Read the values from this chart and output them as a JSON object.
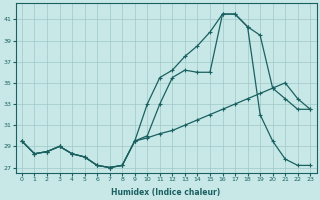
{
  "title": "",
  "xlabel": "Humidex (Indice chaleur)",
  "ylabel": "",
  "background_color": "#c8e8e8",
  "grid_color": "#a0c8c8",
  "line_color": "#1a6060",
  "ylim": [
    26.5,
    42.5
  ],
  "xlim": [
    -0.5,
    23.5
  ],
  "yticks": [
    27,
    29,
    31,
    33,
    35,
    37,
    39,
    41
  ],
  "xticks": [
    0,
    1,
    2,
    3,
    4,
    5,
    6,
    7,
    8,
    9,
    10,
    11,
    12,
    13,
    14,
    15,
    16,
    17,
    18,
    19,
    20,
    21,
    22,
    23
  ],
  "xtick_labels": [
    "0",
    "1",
    "2",
    "3",
    "4",
    "5",
    "6",
    "7",
    "8",
    "9",
    "10",
    "11",
    "12",
    "13",
    "14",
    "15",
    "16",
    "17",
    "18",
    "19",
    "20",
    "21",
    "22",
    "23"
  ],
  "series1_x": [
    0,
    1,
    2,
    3,
    4,
    5,
    6,
    7,
    8,
    9,
    10,
    11,
    12,
    13,
    14,
    15,
    16,
    17,
    18,
    19,
    20,
    21,
    22,
    23
  ],
  "series1_y": [
    29.5,
    28.3,
    28.5,
    29.0,
    28.3,
    28.0,
    27.2,
    27.0,
    27.2,
    29.5,
    33.0,
    35.5,
    36.2,
    37.5,
    38.5,
    39.8,
    41.5,
    41.5,
    40.3,
    39.5,
    34.5,
    33.5,
    32.5,
    32.5
  ],
  "series2_x": [
    0,
    1,
    2,
    3,
    4,
    5,
    6,
    7,
    8,
    9,
    10,
    11,
    12,
    13,
    14,
    15,
    16,
    17,
    18,
    19,
    20,
    21,
    22,
    23
  ],
  "series2_y": [
    29.5,
    28.3,
    28.5,
    29.0,
    28.3,
    28.0,
    27.2,
    27.0,
    27.2,
    29.5,
    30.0,
    33.0,
    35.5,
    36.2,
    36.0,
    36.0,
    41.5,
    41.5,
    40.3,
    32.0,
    29.5,
    27.8,
    27.2,
    27.2
  ],
  "series3_x": [
    0,
    1,
    2,
    3,
    4,
    5,
    6,
    7,
    8,
    9,
    10,
    11,
    12,
    13,
    14,
    15,
    16,
    17,
    18,
    19,
    20,
    21,
    22,
    23
  ],
  "series3_y": [
    29.5,
    28.3,
    28.5,
    29.0,
    28.3,
    28.0,
    27.2,
    27.0,
    27.2,
    29.5,
    29.8,
    30.2,
    30.5,
    31.0,
    31.5,
    32.0,
    32.5,
    33.0,
    33.5,
    34.0,
    34.5,
    35.0,
    33.5,
    32.5
  ],
  "series3_dashed": true
}
